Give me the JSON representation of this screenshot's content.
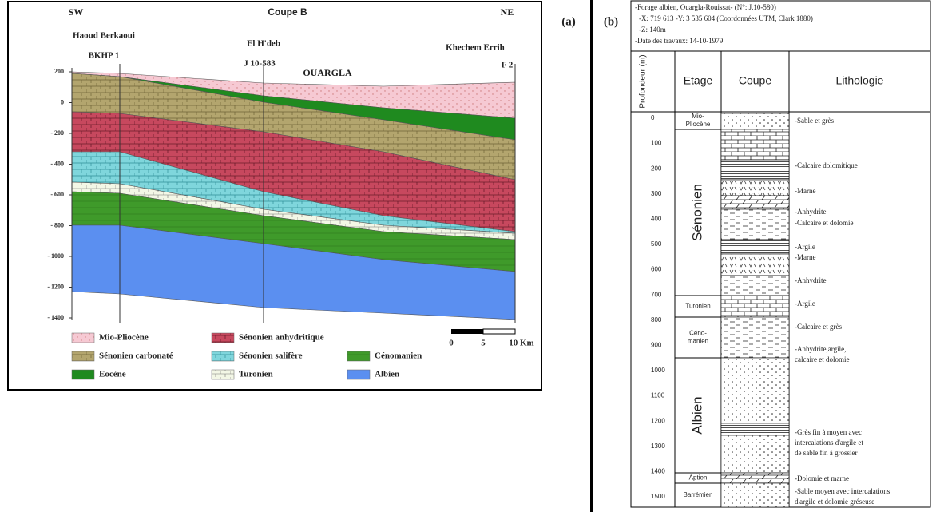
{
  "panel_labels": [
    "(a)",
    "(b)"
  ],
  "section": {
    "direction_left": "SW",
    "title": "Coupe B",
    "direction_right": "NE",
    "wells": [
      {
        "name": "Haoud Berkaoui",
        "id": "BKHP 1"
      },
      {
        "name": "El H'deb",
        "id": "J 10-583"
      },
      {
        "name": "Khechem Errih",
        "id": "F 2"
      }
    ],
    "city": "OUARGLA",
    "yticks": [
      "200",
      "0",
      "- 200",
      "- 400",
      "- 600",
      "- 800",
      "- 1000",
      "- 1200",
      "- 1400"
    ],
    "legend": [
      "Mio-Pliocène",
      "Sénonien anhydritique",
      "Sénonien carbonaté",
      "Sénonien salifère",
      "Cénomanien",
      "Eocène",
      "Turonien",
      "Albien"
    ],
    "scale": [
      "0",
      "5",
      "10 Km"
    ]
  },
  "log": {
    "header": [
      "-Forage albien, Ouargla-Rouissat- (N°: J.10-580)",
      "-X: 719 613  -Y: 3 535 604 (Coordonnées UTM, Clark 1880)",
      "-Z: 140m",
      "-Date des travaux: 14-10-1979"
    ],
    "columns": [
      "Profondeur (m)",
      "Etage",
      "Coupe",
      "Lithologie"
    ],
    "depth_ticks": [
      "0",
      "100",
      "200",
      "300",
      "400",
      "500",
      "600",
      "700",
      "800",
      "900",
      "1000",
      "1100",
      "1200",
      "1300",
      "1400",
      "1500"
    ],
    "stages": [
      [
        "Mio-",
        "Pliocène"
      ],
      [
        "Sénonien"
      ],
      [
        "Turonien"
      ],
      [
        "Céno-",
        "manien"
      ],
      [
        "Albien"
      ],
      [
        "Aptien"
      ],
      [
        "Barrémien"
      ]
    ],
    "lithology": [
      [
        "-Sable et grès"
      ],
      [
        "-Calcaire dolomitique"
      ],
      [
        "-Marne"
      ],
      [
        "-Anhydrite"
      ],
      [
        "-Calcaire et dolomie"
      ],
      [
        "-Argile"
      ],
      [
        "-Marne"
      ],
      [
        "-Anhydrite"
      ],
      [
        "-Argile"
      ],
      [
        "-Calcaire et grès"
      ],
      [
        "-Anhydrite,argile,",
        " calcaire et dolomie"
      ],
      [
        "-Grès fin à moyen avec",
        " intercalations d'argile et",
        " de sable fin à grossier"
      ],
      [
        "-Dolomie et marne"
      ],
      [
        "-Sable moyen avec intercalations",
        " d'argile et dolomie gréseuse"
      ]
    ]
  }
}
